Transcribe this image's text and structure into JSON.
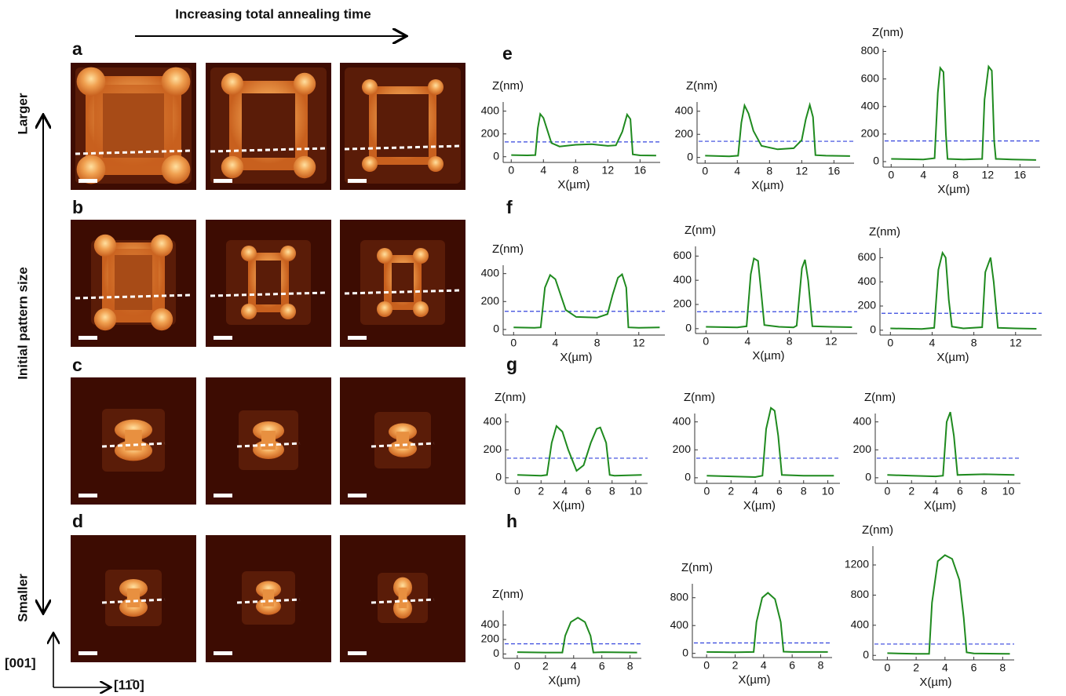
{
  "figure": {
    "time_label": "Increasing total annealing time",
    "size_label": "Initial pattern size",
    "size_top": "Larger",
    "size_bottom": "Smaller",
    "panel_labels": [
      "a",
      "b",
      "c",
      "d",
      "e",
      "f",
      "g",
      "h"
    ],
    "directions": [
      "[001]",
      "[11̄0]"
    ]
  },
  "chart_data": [
    {
      "type": "line",
      "y_label": "Z(nm)",
      "x_label": "X(µm)",
      "color": "#1f8a1f",
      "hline_color": "#3344dd",
      "xlim": [
        -1,
        18.5
      ],
      "ylim": [
        -50,
        480
      ],
      "xticks": [
        0,
        4,
        8,
        12,
        16
      ],
      "yticks": [
        0,
        200,
        400
      ],
      "hline": 130,
      "x": [
        0,
        2,
        3,
        3.3,
        3.6,
        4,
        4.5,
        5,
        6,
        8,
        10,
        12,
        13,
        13.8,
        14.4,
        14.8,
        15.1,
        16,
        18
      ],
      "values": [
        15,
        12,
        15,
        250,
        375,
        340,
        230,
        120,
        90,
        105,
        110,
        95,
        100,
        220,
        370,
        330,
        20,
        12,
        10
      ]
    },
    {
      "type": "line",
      "y_label": "Z(nm)",
      "x_label": "X(µm)",
      "color": "#1f8a1f",
      "hline_color": "#3344dd",
      "xlim": [
        -1,
        18.5
      ],
      "ylim": [
        -50,
        480
      ],
      "xticks": [
        0,
        4,
        8,
        12,
        16
      ],
      "yticks": [
        0,
        200,
        400
      ],
      "hline": 140,
      "x": [
        0,
        3,
        4.1,
        4.5,
        4.9,
        5.4,
        6,
        7,
        9,
        11,
        12,
        12.5,
        13,
        13.4,
        13.7,
        15,
        18
      ],
      "values": [
        15,
        10,
        15,
        300,
        450,
        380,
        230,
        100,
        70,
        80,
        150,
        330,
        455,
        350,
        20,
        15,
        12
      ]
    },
    {
      "type": "line",
      "y_label": "Z(nm)",
      "x_label": "X(µm)",
      "color": "#1f8a1f",
      "hline_color": "#3344dd",
      "xlim": [
        -1,
        18.5
      ],
      "ylim": [
        -40,
        820
      ],
      "xticks": [
        0,
        4,
        8,
        12,
        16
      ],
      "yticks": [
        0,
        200,
        400,
        600,
        800
      ],
      "hline": 150,
      "x": [
        0,
        4,
        5.4,
        5.8,
        6.1,
        6.5,
        6.8,
        7,
        9,
        11.3,
        11.6,
        12.1,
        12.5,
        12.8,
        13,
        15,
        18
      ],
      "values": [
        20,
        15,
        25,
        500,
        680,
        650,
        200,
        20,
        15,
        20,
        450,
        690,
        660,
        150,
        20,
        15,
        12
      ]
    },
    {
      "type": "line",
      "y_label": "Z(nm)",
      "x_label": "X(µm)",
      "color": "#1f8a1f",
      "hline_color": "#3344dd",
      "xlim": [
        -1,
        14.5
      ],
      "ylim": [
        -40,
        460
      ],
      "xticks": [
        0,
        4,
        8,
        12
      ],
      "yticks": [
        0,
        200,
        400
      ],
      "hline": 130,
      "x": [
        0,
        2,
        2.6,
        3,
        3.5,
        4,
        4.5,
        5,
        6,
        8,
        9,
        9.5,
        10,
        10.4,
        10.8,
        11,
        12,
        14
      ],
      "values": [
        15,
        12,
        15,
        300,
        390,
        360,
        250,
        140,
        90,
        85,
        110,
        250,
        370,
        395,
        300,
        15,
        12,
        15
      ]
    },
    {
      "type": "line",
      "y_label": "Z(nm)",
      "x_label": "X(µm)",
      "color": "#1f8a1f",
      "hline_color": "#3344dd",
      "xlim": [
        -1,
        14.5
      ],
      "ylim": [
        -40,
        680
      ],
      "xticks": [
        0,
        4,
        8,
        12
      ],
      "yticks": [
        0,
        200,
        400,
        600
      ],
      "hline": 140,
      "x": [
        0,
        3,
        3.9,
        4.3,
        4.6,
        5,
        5.3,
        5.6,
        7,
        8.4,
        8.7,
        9.2,
        9.5,
        9.8,
        10.2,
        12,
        14
      ],
      "values": [
        15,
        10,
        20,
        450,
        580,
        560,
        300,
        30,
        15,
        10,
        25,
        500,
        570,
        400,
        20,
        15,
        12
      ]
    },
    {
      "type": "line",
      "y_label": "Z(nm)",
      "x_label": "X(µm)",
      "color": "#1f8a1f",
      "hline_color": "#3344dd",
      "xlim": [
        -1,
        14.5
      ],
      "ylim": [
        -40,
        680
      ],
      "xticks": [
        0,
        4,
        8,
        12
      ],
      "yticks": [
        0,
        200,
        400,
        600
      ],
      "hline": 140,
      "x": [
        0,
        3,
        4.2,
        4.6,
        5,
        5.3,
        5.6,
        5.9,
        7,
        8.8,
        9.1,
        9.6,
        9.9,
        10.3,
        12,
        14
      ],
      "values": [
        15,
        10,
        20,
        500,
        640,
        600,
        250,
        30,
        15,
        25,
        480,
        600,
        400,
        20,
        15,
        12
      ]
    },
    {
      "type": "line",
      "y_label": "Z(nm)",
      "x_label": "X(µm)",
      "color": "#1f8a1f",
      "hline_color": "#3344dd",
      "xlim": [
        -1,
        11
      ],
      "ylim": [
        -40,
        460
      ],
      "xticks": [
        0,
        2,
        4,
        6,
        8,
        10
      ],
      "yticks": [
        0,
        200,
        400
      ],
      "hline": 140,
      "x": [
        0,
        2,
        2.5,
        2.9,
        3.3,
        3.8,
        4.3,
        5,
        5.6,
        6.2,
        6.7,
        7,
        7.5,
        7.8,
        8.2,
        10.5
      ],
      "values": [
        20,
        15,
        20,
        250,
        370,
        330,
        200,
        50,
        90,
        250,
        350,
        360,
        250,
        20,
        15,
        20
      ]
    },
    {
      "type": "line",
      "y_label": "Z(nm)",
      "x_label": "X(µm)",
      "color": "#1f8a1f",
      "hline_color": "#3344dd",
      "xlim": [
        -1,
        11
      ],
      "ylim": [
        -40,
        460
      ],
      "xticks": [
        0,
        2,
        4,
        6,
        8,
        10
      ],
      "yticks": [
        0,
        200,
        400
      ],
      "hline": 140,
      "x": [
        0,
        2,
        4,
        4.6,
        4.9,
        5.3,
        5.6,
        5.9,
        6.2,
        8,
        10.5
      ],
      "values": [
        15,
        10,
        5,
        15,
        350,
        500,
        480,
        300,
        20,
        15,
        15
      ]
    },
    {
      "type": "line",
      "y_label": "Z(nm)",
      "x_label": "X(µm)",
      "color": "#1f8a1f",
      "hline_color": "#3344dd",
      "xlim": [
        -1,
        11
      ],
      "ylim": [
        -40,
        460
      ],
      "xticks": [
        0,
        2,
        4,
        6,
        8,
        10
      ],
      "yticks": [
        0,
        200,
        400
      ],
      "hline": 140,
      "x": [
        0,
        2,
        4,
        4.6,
        4.9,
        5.2,
        5.5,
        5.8,
        8,
        10.5
      ],
      "values": [
        20,
        15,
        10,
        15,
        400,
        470,
        300,
        20,
        25,
        20
      ]
    },
    {
      "type": "line",
      "y_label": "Z(nm)",
      "x_label": "X(µm)",
      "color": "#1f8a1f",
      "hline_color": "#3344dd",
      "xlim": [
        -1,
        8.8
      ],
      "ylim": [
        -60,
        600
      ],
      "xticks": [
        0,
        2,
        4,
        6,
        8
      ],
      "yticks": [
        0,
        200,
        400
      ],
      "hline": 140,
      "x": [
        0,
        2,
        3.2,
        3.4,
        3.8,
        4.3,
        4.8,
        5.2,
        5.4,
        6,
        8.5
      ],
      "values": [
        25,
        20,
        20,
        250,
        440,
        500,
        440,
        250,
        20,
        25,
        20
      ]
    },
    {
      "type": "line",
      "y_label": "Z(nm)",
      "x_label": "X(µm)",
      "color": "#1f8a1f",
      "hline_color": "#3344dd",
      "xlim": [
        -1,
        8.8
      ],
      "ylim": [
        -60,
        1000
      ],
      "xticks": [
        0,
        2,
        4,
        6,
        8
      ],
      "yticks": [
        0,
        400,
        800
      ],
      "hline": 150,
      "x": [
        0,
        2,
        3.3,
        3.5,
        3.9,
        4.3,
        4.8,
        5.2,
        5.4,
        6,
        8.5
      ],
      "values": [
        20,
        15,
        20,
        450,
        800,
        870,
        780,
        450,
        25,
        20,
        20
      ]
    },
    {
      "type": "line",
      "y_label": "Z(nm)",
      "x_label": "X(µm)",
      "color": "#1f8a1f",
      "hline_color": "#3344dd",
      "xlim": [
        -1,
        8.8
      ],
      "ylim": [
        -60,
        1450
      ],
      "xticks": [
        0,
        2,
        4,
        6,
        8
      ],
      "yticks": [
        0,
        400,
        800,
        1200
      ],
      "hline": 150,
      "x": [
        0,
        2,
        2.9,
        3.1,
        3.5,
        4,
        4.5,
        5,
        5.3,
        5.5,
        6,
        8.5
      ],
      "values": [
        30,
        20,
        20,
        700,
        1250,
        1330,
        1280,
        1000,
        500,
        40,
        25,
        20
      ]
    }
  ]
}
